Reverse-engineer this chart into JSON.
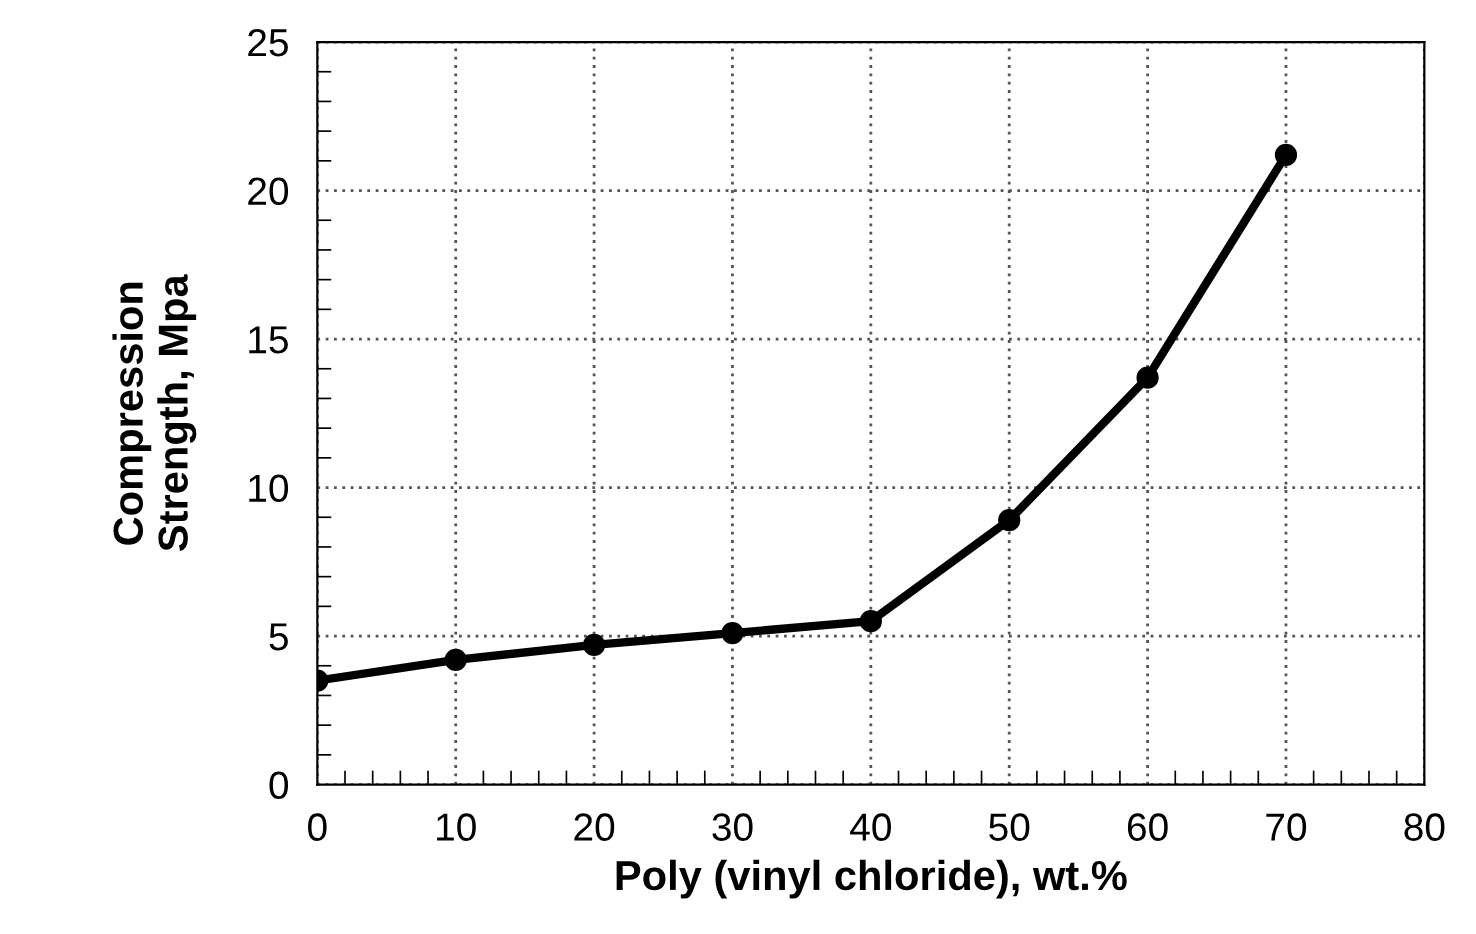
{
  "chart_data": {
    "type": "line",
    "xlabel": "Poly (vinyl chloride), wt.%",
    "ylabel": "Compression\nStrength, Mpa",
    "x": [
      0,
      10,
      20,
      30,
      40,
      50,
      60,
      70
    ],
    "series": [
      {
        "color": "#000000",
        "values": [
          3.5,
          4.2,
          4.7,
          5.1,
          5.5,
          8.9,
          13.7,
          21.2
        ]
      }
    ],
    "xlim": [
      0,
      80
    ],
    "ylim": [
      0,
      25
    ],
    "xticks": [
      0,
      10,
      20,
      30,
      40,
      50,
      60,
      70,
      80
    ],
    "yticks": [
      0,
      5,
      10,
      15,
      20,
      25
    ],
    "grid": true,
    "marker": "circle",
    "line_style": "solid"
  }
}
